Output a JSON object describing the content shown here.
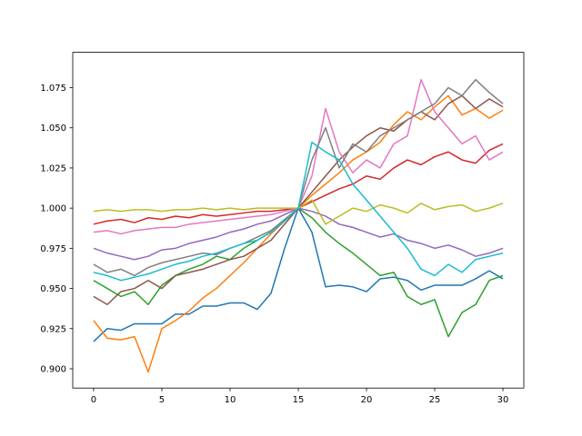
{
  "chart_data": {
    "type": "line",
    "x": [
      0,
      1,
      2,
      3,
      4,
      5,
      6,
      7,
      8,
      9,
      10,
      11,
      12,
      13,
      14,
      15,
      16,
      17,
      18,
      19,
      20,
      21,
      22,
      23,
      24,
      25,
      26,
      27,
      28,
      29,
      30
    ],
    "xlim": [
      -1.53,
      31.53
    ],
    "xticks": [
      0,
      5,
      10,
      15,
      20,
      25,
      30
    ],
    "ylim": [
      0.888,
      1.097
    ],
    "yticks": [
      {
        "value": 0.9,
        "label": "0.900"
      },
      {
        "value": 0.925,
        "label": "0.925"
      },
      {
        "value": 0.95,
        "label": "0.950"
      },
      {
        "value": 0.975,
        "label": "0.975"
      },
      {
        "value": 1.0,
        "label": "1.000"
      },
      {
        "value": 1.025,
        "label": "1.025"
      },
      {
        "value": 1.05,
        "label": "1.050"
      },
      {
        "value": 1.075,
        "label": "1.075"
      }
    ],
    "series": [
      {
        "color": "#1f77b4",
        "values": [
          0.917,
          0.925,
          0.924,
          0.928,
          0.928,
          0.928,
          0.934,
          0.934,
          0.939,
          0.939,
          0.941,
          0.941,
          0.937,
          0.947,
          0.975,
          1.0,
          0.985,
          0.951,
          0.952,
          0.951,
          0.948,
          0.956,
          0.957,
          0.955,
          0.949,
          0.952,
          0.952,
          0.952,
          0.956,
          0.961,
          0.956
        ]
      },
      {
        "color": "#ff7f0e",
        "values": [
          0.93,
          0.919,
          0.918,
          0.92,
          0.898,
          0.925,
          0.93,
          0.936,
          0.944,
          0.95,
          0.958,
          0.966,
          0.975,
          0.984,
          0.992,
          1.0,
          1.008,
          1.015,
          1.022,
          1.03,
          1.035,
          1.041,
          1.052,
          1.06,
          1.055,
          1.063,
          1.07,
          1.058,
          1.062,
          1.056,
          1.061
        ]
      },
      {
        "color": "#2ca02c",
        "values": [
          0.955,
          0.95,
          0.945,
          0.948,
          0.94,
          0.952,
          0.958,
          0.962,
          0.965,
          0.97,
          0.968,
          0.975,
          0.98,
          0.985,
          0.992,
          1.0,
          0.994,
          0.985,
          0.978,
          0.972,
          0.965,
          0.958,
          0.96,
          0.945,
          0.94,
          0.943,
          0.92,
          0.935,
          0.94,
          0.955,
          0.958
        ]
      },
      {
        "color": "#d62728",
        "values": [
          0.99,
          0.992,
          0.993,
          0.991,
          0.994,
          0.993,
          0.995,
          0.994,
          0.996,
          0.995,
          0.996,
          0.997,
          0.998,
          0.998,
          0.999,
          1.0,
          1.004,
          1.008,
          1.012,
          1.015,
          1.02,
          1.018,
          1.025,
          1.03,
          1.027,
          1.032,
          1.035,
          1.03,
          1.028,
          1.036,
          1.04
        ]
      },
      {
        "color": "#9467bd",
        "values": [
          0.975,
          0.972,
          0.97,
          0.968,
          0.97,
          0.974,
          0.975,
          0.978,
          0.98,
          0.982,
          0.985,
          0.987,
          0.99,
          0.992,
          0.996,
          1.0,
          0.998,
          0.995,
          0.99,
          0.988,
          0.985,
          0.982,
          0.984,
          0.98,
          0.978,
          0.975,
          0.977,
          0.974,
          0.97,
          0.972,
          0.975
        ]
      },
      {
        "color": "#8c564b",
        "values": [
          0.945,
          0.94,
          0.948,
          0.95,
          0.955,
          0.95,
          0.958,
          0.96,
          0.962,
          0.965,
          0.968,
          0.97,
          0.975,
          0.98,
          0.99,
          1.0,
          1.01,
          1.02,
          1.03,
          1.038,
          1.045,
          1.05,
          1.048,
          1.055,
          1.06,
          1.055,
          1.065,
          1.07,
          1.062,
          1.068,
          1.063
        ]
      },
      {
        "color": "#e377c2",
        "values": [
          0.985,
          0.986,
          0.984,
          0.986,
          0.987,
          0.988,
          0.988,
          0.99,
          0.991,
          0.992,
          0.993,
          0.994,
          0.995,
          0.996,
          0.998,
          1.0,
          1.02,
          1.062,
          1.035,
          1.022,
          1.03,
          1.025,
          1.04,
          1.045,
          1.08,
          1.06,
          1.05,
          1.04,
          1.045,
          1.03,
          1.035
        ]
      },
      {
        "color": "#7f7f7f",
        "values": [
          0.965,
          0.96,
          0.962,
          0.958,
          0.963,
          0.966,
          0.968,
          0.97,
          0.972,
          0.971,
          0.975,
          0.978,
          0.982,
          0.986,
          0.993,
          1.0,
          1.03,
          1.05,
          1.025,
          1.04,
          1.035,
          1.045,
          1.05,
          1.055,
          1.06,
          1.065,
          1.075,
          1.07,
          1.08,
          1.072,
          1.065
        ]
      },
      {
        "color": "#bcbd22",
        "values": [
          0.998,
          0.999,
          0.998,
          0.999,
          0.999,
          0.998,
          0.999,
          0.999,
          1.0,
          0.999,
          1.0,
          0.999,
          1.0,
          1.0,
          1.0,
          1.0,
          1.005,
          0.99,
          0.995,
          1.0,
          0.998,
          1.002,
          1.0,
          0.997,
          1.003,
          0.999,
          1.001,
          1.002,
          0.998,
          1.0,
          1.003
        ]
      },
      {
        "color": "#17becf",
        "values": [
          0.96,
          0.958,
          0.955,
          0.957,
          0.959,
          0.962,
          0.965,
          0.967,
          0.97,
          0.972,
          0.975,
          0.978,
          0.98,
          0.985,
          0.992,
          1.0,
          1.041,
          1.035,
          1.03,
          1.015,
          1.005,
          0.995,
          0.985,
          0.975,
          0.962,
          0.958,
          0.965,
          0.96,
          0.968,
          0.97,
          0.972
        ]
      }
    ]
  }
}
